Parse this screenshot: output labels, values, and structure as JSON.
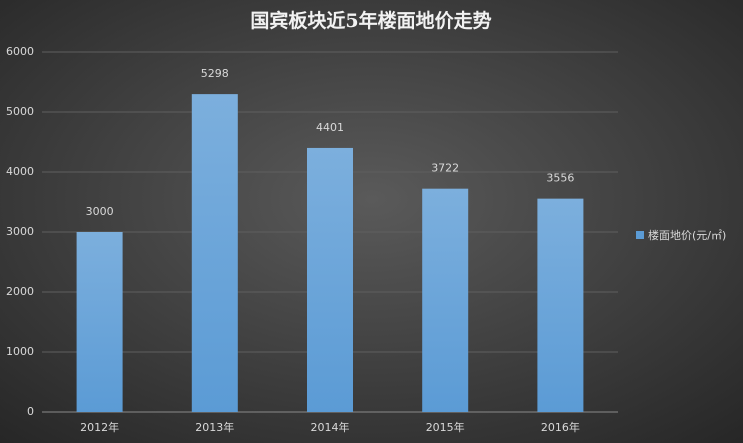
{
  "chart_data": {
    "type": "bar",
    "title": "国宾板块近5年楼面地价走势",
    "categories": [
      "2012年",
      "2013年",
      "2014年",
      "2015年",
      "2016年"
    ],
    "series": [
      {
        "name": "楼面地价(元/㎡)",
        "color": "#5b9bd5",
        "values": [
          3000,
          5298,
          4401,
          3722,
          3556
        ]
      }
    ],
    "ylim": [
      0,
      6000
    ],
    "yticks": [
      0,
      1000,
      2000,
      3000,
      4000,
      5000,
      6000
    ],
    "grid": true,
    "legend": "right"
  }
}
